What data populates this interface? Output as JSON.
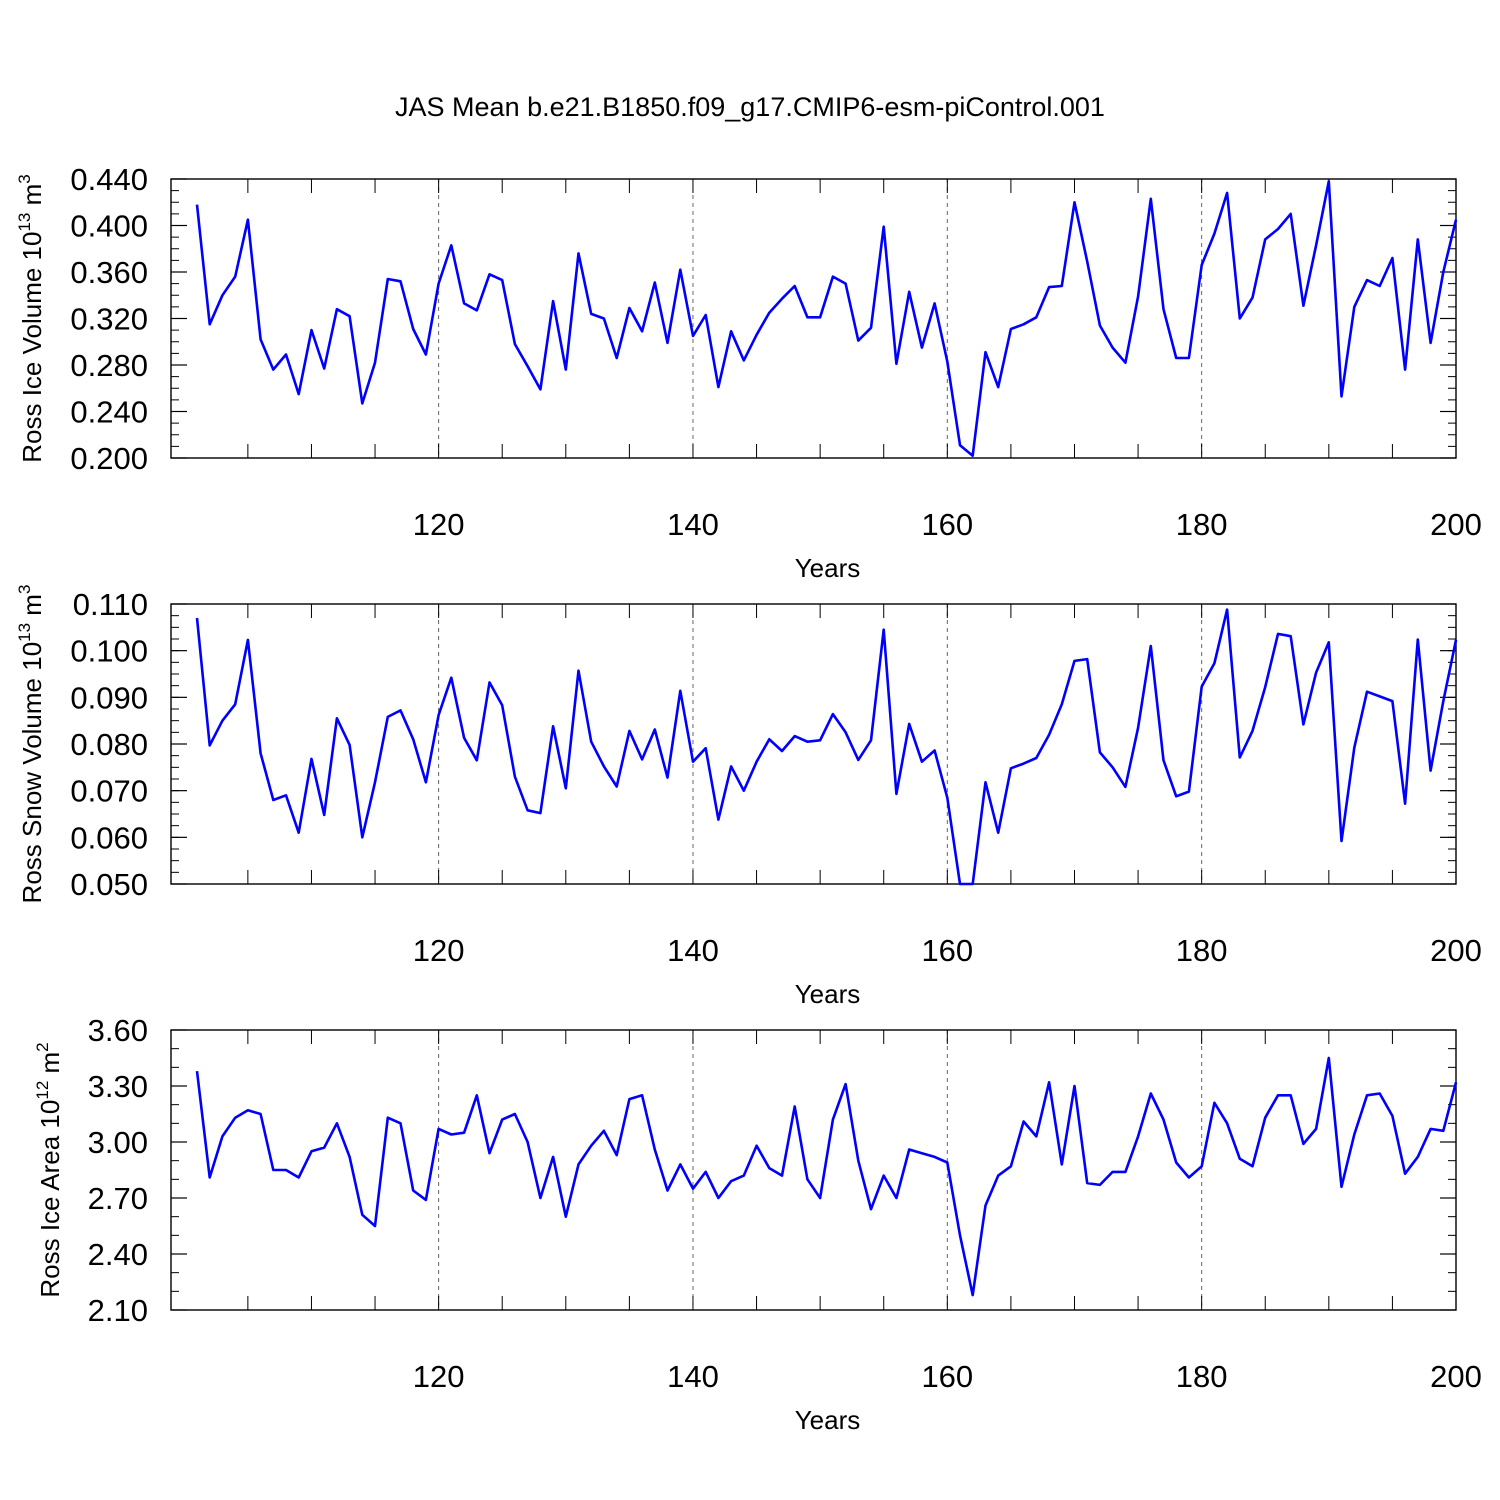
{
  "title": "JAS Mean b.e21.B1850.f09_g17.CMIP6-esm-piControl.001",
  "chart_data": [
    {
      "type": "line",
      "ylabel": {
        "base": "Ross Ice Volume 10",
        "exp": "13",
        "unit": " m",
        "unit_exp": "3"
      },
      "xlabel": "Years",
      "xlim": [
        101,
        200
      ],
      "ylim": [
        0.2,
        0.44
      ],
      "yticks": [
        0.2,
        0.24,
        0.28,
        0.32,
        0.36,
        0.4,
        0.44
      ],
      "ytick_labels": [
        "0.200",
        "0.240",
        "0.280",
        "0.320",
        "0.360",
        "0.400",
        "0.440"
      ],
      "ytick_minor": 0.01,
      "xticks": [
        120,
        140,
        160,
        180,
        200
      ],
      "xtick_labels": [
        "120",
        "140",
        "160",
        "180",
        "200"
      ],
      "vgrid": [
        120,
        140,
        160,
        180
      ],
      "color": "#0000ff",
      "x": [
        101,
        102,
        103,
        104,
        105,
        106,
        107,
        108,
        109,
        110,
        111,
        112,
        113,
        114,
        115,
        116,
        117,
        118,
        119,
        120,
        121,
        122,
        123,
        124,
        125,
        126,
        127,
        128,
        129,
        130,
        131,
        132,
        133,
        134,
        135,
        136,
        137,
        138,
        139,
        140,
        141,
        142,
        143,
        144,
        145,
        146,
        147,
        148,
        149,
        150,
        151,
        152,
        153,
        154,
        155,
        156,
        157,
        158,
        159,
        160,
        161,
        162,
        163,
        164,
        165,
        166,
        167,
        168,
        169,
        170,
        171,
        172,
        173,
        174,
        175,
        176,
        177,
        178,
        179,
        180,
        181,
        182,
        183,
        184,
        185,
        186,
        187,
        188,
        189,
        190,
        191,
        192,
        193,
        194,
        195,
        196,
        197,
        198,
        199,
        200
      ],
      "values": [
        0.418,
        0.315,
        0.34,
        0.356,
        0.405,
        0.302,
        0.276,
        0.289,
        0.255,
        0.31,
        0.277,
        0.328,
        0.322,
        0.247,
        0.282,
        0.354,
        0.352,
        0.311,
        0.289,
        0.35,
        0.383,
        0.333,
        0.327,
        0.358,
        0.353,
        0.298,
        0.279,
        0.259,
        0.335,
        0.276,
        0.376,
        0.324,
        0.32,
        0.286,
        0.329,
        0.309,
        0.351,
        0.299,
        0.362,
        0.305,
        0.323,
        0.261,
        0.309,
        0.284,
        0.306,
        0.325,
        0.337,
        0.348,
        0.321,
        0.321,
        0.356,
        0.35,
        0.301,
        0.312,
        0.399,
        0.281,
        0.343,
        0.295,
        0.333,
        0.283,
        0.211,
        0.202,
        0.291,
        0.261,
        0.311,
        0.315,
        0.321,
        0.347,
        0.348,
        0.42,
        0.369,
        0.314,
        0.295,
        0.282,
        0.339,
        0.423,
        0.328,
        0.286,
        0.286,
        0.366,
        0.393,
        0.428,
        0.32,
        0.338,
        0.388,
        0.397,
        0.41,
        0.331,
        0.383,
        0.438,
        0.253,
        0.33,
        0.353,
        0.348,
        0.372,
        0.276,
        0.388,
        0.299,
        0.36,
        0.405
      ]
    },
    {
      "type": "line",
      "ylabel": {
        "base": "Ross Snow Volume 10",
        "exp": "13",
        "unit": " m",
        "unit_exp": "3"
      },
      "xlabel": "Years",
      "xlim": [
        101,
        200
      ],
      "ylim": [
        0.05,
        0.11
      ],
      "yticks": [
        0.05,
        0.06,
        0.07,
        0.08,
        0.09,
        0.1,
        0.11
      ],
      "ytick_labels": [
        "0.050",
        "0.060",
        "0.070",
        "0.080",
        "0.090",
        "0.100",
        "0.110"
      ],
      "ytick_minor": 0.0025,
      "xticks": [
        120,
        140,
        160,
        180,
        200
      ],
      "xtick_labels": [
        "120",
        "140",
        "160",
        "180",
        "200"
      ],
      "vgrid": [
        120,
        140,
        160,
        180
      ],
      "color": "#0000ff",
      "x": [
        101,
        102,
        103,
        104,
        105,
        106,
        107,
        108,
        109,
        110,
        111,
        112,
        113,
        114,
        115,
        116,
        117,
        118,
        119,
        120,
        121,
        122,
        123,
        124,
        125,
        126,
        127,
        128,
        129,
        130,
        131,
        132,
        133,
        134,
        135,
        136,
        137,
        138,
        139,
        140,
        141,
        142,
        143,
        144,
        145,
        146,
        147,
        148,
        149,
        150,
        151,
        152,
        153,
        154,
        155,
        156,
        157,
        158,
        159,
        160,
        161,
        162,
        163,
        164,
        165,
        166,
        167,
        168,
        169,
        170,
        171,
        172,
        173,
        174,
        175,
        176,
        177,
        178,
        179,
        180,
        181,
        182,
        183,
        184,
        185,
        186,
        187,
        188,
        189,
        190,
        191,
        192,
        193,
        194,
        195,
        196,
        197,
        198,
        199,
        200
      ],
      "values": [
        0.107,
        0.0797,
        0.085,
        0.0885,
        0.1023,
        0.078,
        0.068,
        0.069,
        0.061,
        0.0768,
        0.0648,
        0.0855,
        0.0798,
        0.06,
        0.0718,
        0.0858,
        0.0872,
        0.081,
        0.0718,
        0.0862,
        0.0942,
        0.0813,
        0.0765,
        0.0932,
        0.0883,
        0.073,
        0.0658,
        0.0652,
        0.0838,
        0.0705,
        0.0957,
        0.0805,
        0.0752,
        0.0709,
        0.0828,
        0.0767,
        0.0831,
        0.0728,
        0.0914,
        0.0762,
        0.0791,
        0.0638,
        0.0752,
        0.07,
        0.0762,
        0.081,
        0.0785,
        0.0817,
        0.0805,
        0.0808,
        0.0864,
        0.0825,
        0.0766,
        0.0808,
        0.1045,
        0.0693,
        0.0843,
        0.0762,
        0.0786,
        0.0685,
        0.05,
        0.05,
        0.0718,
        0.061,
        0.0748,
        0.0758,
        0.077,
        0.082,
        0.0885,
        0.0978,
        0.0982,
        0.0782,
        0.075,
        0.0708,
        0.0835,
        0.101,
        0.0765,
        0.0688,
        0.0698,
        0.0923,
        0.0973,
        0.1088,
        0.0771,
        0.0828,
        0.0922,
        0.1036,
        0.1031,
        0.0842,
        0.0953,
        0.1018,
        0.0592,
        0.0792,
        0.0912,
        0.0902,
        0.0892,
        0.0672,
        0.1024,
        0.0743,
        0.0892,
        0.1023
      ]
    },
    {
      "type": "line",
      "ylabel": {
        "base": "Ross Ice Area 10",
        "exp": "12",
        "unit": " m",
        "unit_exp": "2"
      },
      "xlabel": "Years",
      "xlim": [
        101,
        200
      ],
      "ylim": [
        2.1,
        3.6
      ],
      "yticks": [
        2.1,
        2.4,
        2.7,
        3.0,
        3.3,
        3.6
      ],
      "ytick_labels": [
        "2.10",
        "2.40",
        "2.70",
        "3.00",
        "3.30",
        "3.60"
      ],
      "ytick_minor": 0.1,
      "xticks": [
        120,
        140,
        160,
        180,
        200
      ],
      "xtick_labels": [
        "120",
        "140",
        "160",
        "180",
        "200"
      ],
      "vgrid": [
        120,
        140,
        160,
        180
      ],
      "color": "#0000ff",
      "x": [
        101,
        102,
        103,
        104,
        105,
        106,
        107,
        108,
        109,
        110,
        111,
        112,
        113,
        114,
        115,
        116,
        117,
        118,
        119,
        120,
        121,
        122,
        123,
        124,
        125,
        126,
        127,
        128,
        129,
        130,
        131,
        132,
        133,
        134,
        135,
        136,
        137,
        138,
        139,
        140,
        141,
        142,
        143,
        144,
        145,
        146,
        147,
        148,
        149,
        150,
        151,
        152,
        153,
        154,
        155,
        156,
        157,
        158,
        159,
        160,
        161,
        162,
        163,
        164,
        165,
        166,
        167,
        168,
        169,
        170,
        171,
        172,
        173,
        174,
        175,
        176,
        177,
        178,
        179,
        180,
        181,
        182,
        183,
        184,
        185,
        186,
        187,
        188,
        189,
        190,
        191,
        192,
        193,
        194,
        195,
        196,
        197,
        198,
        199,
        200
      ],
      "values": [
        3.38,
        2.81,
        3.03,
        3.13,
        3.17,
        3.15,
        2.85,
        2.85,
        2.81,
        2.95,
        2.97,
        3.1,
        2.92,
        2.61,
        2.55,
        3.13,
        3.1,
        2.74,
        2.69,
        3.07,
        3.04,
        3.05,
        3.25,
        2.94,
        3.12,
        3.15,
        3.0,
        2.7,
        2.92,
        2.6,
        2.88,
        2.98,
        3.06,
        2.93,
        3.23,
        3.25,
        2.96,
        2.74,
        2.88,
        2.75,
        2.84,
        2.7,
        2.79,
        2.82,
        2.98,
        2.86,
        2.82,
        3.19,
        2.8,
        2.7,
        3.12,
        3.31,
        2.9,
        2.64,
        2.82,
        2.7,
        2.96,
        2.94,
        2.92,
        2.89,
        2.5,
        2.18,
        2.66,
        2.82,
        2.87,
        3.11,
        3.03,
        3.32,
        2.88,
        3.3,
        2.78,
        2.77,
        2.84,
        2.84,
        3.03,
        3.26,
        3.12,
        2.89,
        2.81,
        2.87,
        3.21,
        3.1,
        2.91,
        2.87,
        3.13,
        3.25,
        3.25,
        2.99,
        3.07,
        3.45,
        2.76,
        3.04,
        3.25,
        3.26,
        3.14,
        2.83,
        2.92,
        3.07,
        3.06,
        3.32
      ]
    }
  ]
}
